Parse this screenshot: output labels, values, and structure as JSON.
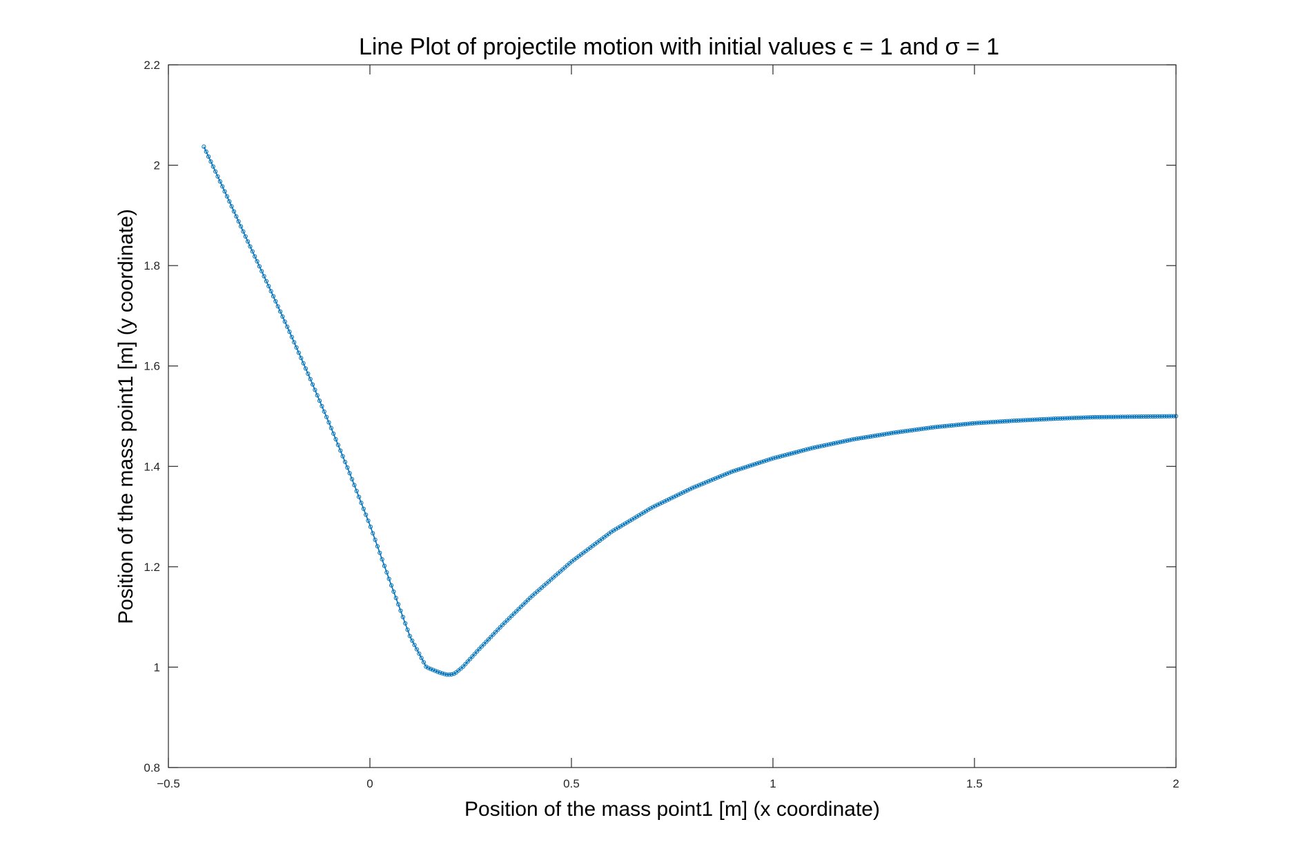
{
  "chart_data": {
    "type": "line",
    "title": "Line Plot of projectile motion with initial values ϵ = 1 and σ = 1",
    "xlabel": "Position of the mass point1 [m] (x coordinate)",
    "ylabel": "Position of the mass point1 [m] (y coordinate)",
    "xlim": [
      -0.5,
      2
    ],
    "ylim": [
      0.8,
      2.2
    ],
    "xticks": [
      -0.5,
      0,
      0.5,
      1,
      1.5,
      2
    ],
    "xtick_labels": [
      "−0.5",
      "0",
      "0.5",
      "1",
      "1.5",
      "2"
    ],
    "yticks": [
      0.8,
      1,
      1.2,
      1.4,
      1.6,
      1.8,
      2,
      2.2
    ],
    "ytick_labels": [
      "0.8",
      "1",
      "1.2",
      "1.4",
      "1.6",
      "1.8",
      "2",
      "2.2"
    ],
    "grid": false,
    "marker": "circle",
    "series": [
      {
        "color": "#0072BD",
        "x": [
          -0.412,
          -0.35,
          -0.3,
          -0.25,
          -0.2,
          -0.15,
          -0.1,
          -0.05,
          0.0,
          0.05,
          0.1,
          0.14,
          0.17,
          0.19,
          0.2,
          0.21,
          0.23,
          0.27,
          0.33,
          0.4,
          0.5,
          0.6,
          0.7,
          0.8,
          0.9,
          1.0,
          1.1,
          1.2,
          1.3,
          1.4,
          1.5,
          1.6,
          1.7,
          1.8,
          1.9,
          2.0
        ],
        "y": [
          2.037,
          1.93,
          1.843,
          1.757,
          1.669,
          1.578,
          1.484,
          1.386,
          1.283,
          1.17,
          1.06,
          1.0,
          0.99,
          0.985,
          0.985,
          0.987,
          1.0,
          1.035,
          1.085,
          1.14,
          1.21,
          1.27,
          1.318,
          1.357,
          1.39,
          1.416,
          1.437,
          1.454,
          1.467,
          1.478,
          1.486,
          1.491,
          1.495,
          1.498,
          1.499,
          1.5
        ]
      }
    ]
  }
}
